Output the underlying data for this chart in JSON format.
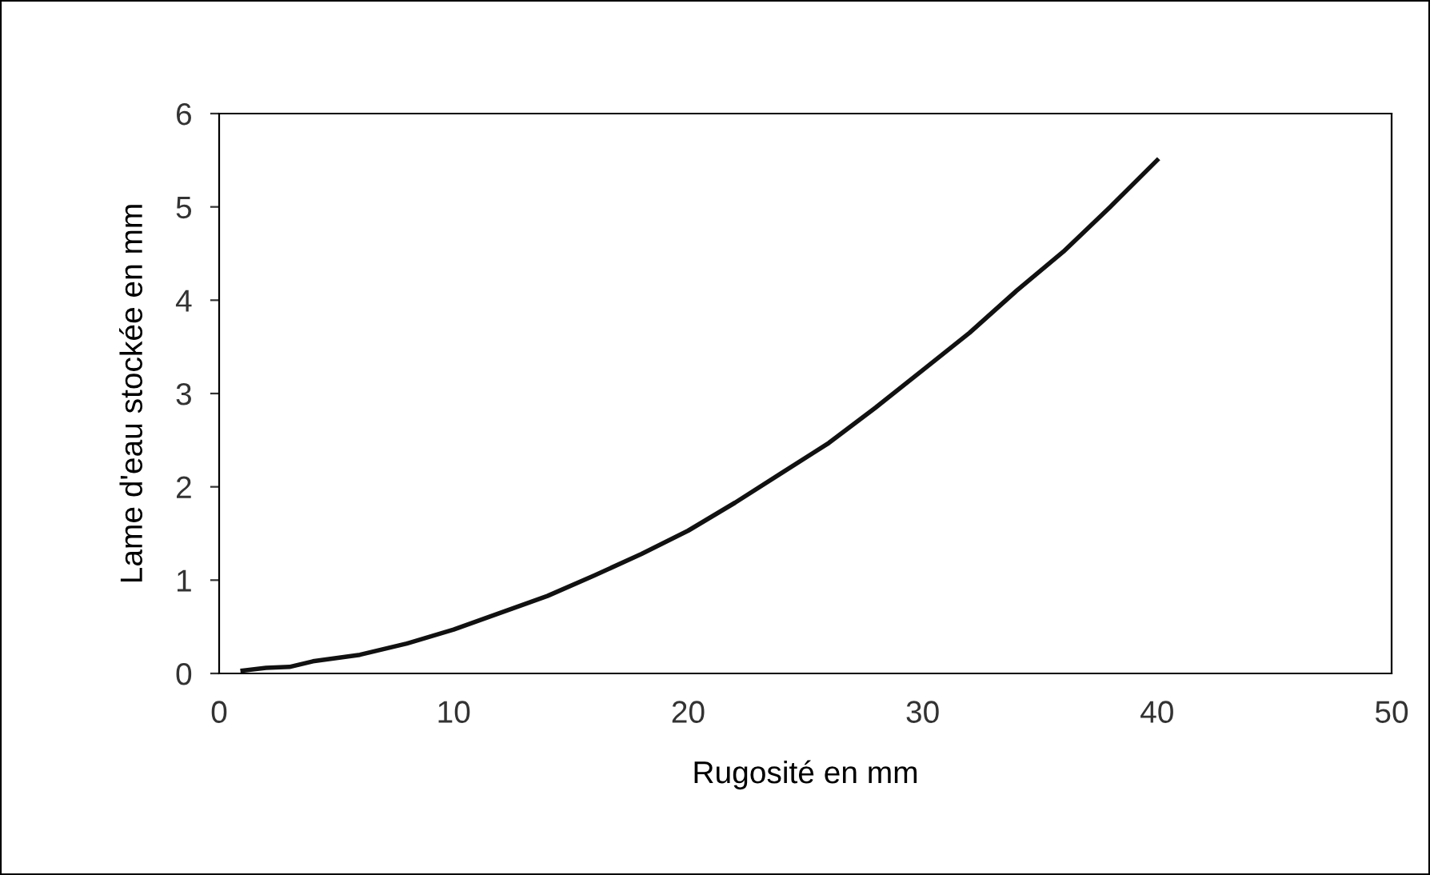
{
  "chart_data": {
    "type": "line",
    "xlabel": "Rugosité en mm",
    "ylabel": "Lame d'eau stockée en mm",
    "x": [
      1,
      2,
      3,
      4,
      6,
      8,
      10,
      12,
      14,
      16,
      18,
      20,
      22,
      24,
      26,
      28,
      30,
      32,
      34,
      36,
      38,
      40
    ],
    "series": [
      {
        "color": "#111111",
        "values": [
          0.03,
          0.06,
          0.07,
          0.13,
          0.2,
          0.32,
          0.47,
          0.65,
          0.83,
          1.05,
          1.28,
          1.53,
          1.83,
          2.15,
          2.47,
          2.85,
          3.25,
          3.65,
          4.1,
          4.52,
          5.0,
          5.5
        ]
      }
    ],
    "xlim": [
      0,
      50
    ],
    "xticks": [
      0,
      10,
      20,
      30,
      40,
      50
    ],
    "ylim": [
      0,
      6
    ],
    "yticks": [
      0,
      1,
      2,
      3,
      4,
      5,
      6
    ],
    "grid": false,
    "legend": false,
    "marker": "none",
    "line_style": "solid"
  }
}
